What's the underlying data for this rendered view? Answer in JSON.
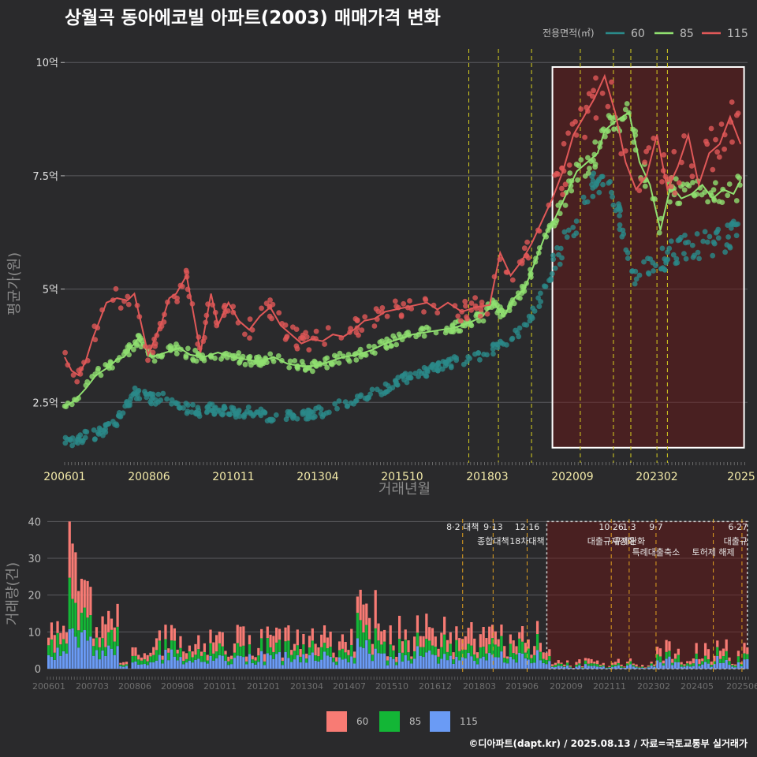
{
  "title": "상월곡 동아에코빌 아파트(2003) 매매가격 변화",
  "legend": {
    "title": "전용면적(㎡)",
    "items": [
      {
        "label": "60",
        "color": "#2a8a8a"
      },
      {
        "label": "85",
        "color": "#90e070"
      },
      {
        "label": "115",
        "color": "#e05858"
      }
    ]
  },
  "chart_data": [
    {
      "type": "line",
      "title": "상월곡 동아에코빌 아파트(2003) 매매가격 변화",
      "xlabel": "거래년월",
      "ylabel": "평균가(원)",
      "x_ticks": [
        "200601",
        "200806",
        "201011",
        "201304",
        "201510",
        "201803",
        "202009",
        "202302",
        "2025"
      ],
      "y_ticks": [
        {
          "value": 2.5,
          "label": "2.5억"
        },
        {
          "value": 5,
          "label": "5억"
        },
        {
          "value": 7.5,
          "label": "7.5억"
        },
        {
          "value": 10,
          "label": "10억"
        }
      ],
      "ylim": [
        1.2,
        10.3
      ],
      "x_unit": "years since 2006-01",
      "policy_lines": [
        11.6,
        12.45,
        13.4,
        14.8,
        15.75,
        16.25,
        17.0,
        17.3
      ],
      "highlight": {
        "x_start": 14.0,
        "x_end": 19.5,
        "y_low": 1.5,
        "y_high": 9.9
      },
      "series": [
        {
          "name": "60",
          "color": "#2a8a8a",
          "values": [
            [
              0.0,
              1.6
            ],
            [
              0.3,
              1.65
            ],
            [
              0.6,
              1.75
            ],
            [
              0.9,
              1.8
            ],
            [
              1.2,
              1.9
            ],
            [
              1.4,
              2.0
            ],
            [
              1.6,
              2.2
            ],
            [
              1.8,
              2.45
            ],
            [
              2.0,
              2.7
            ],
            [
              2.6,
              2.55
            ],
            [
              3.0,
              2.6
            ],
            [
              3.4,
              2.4
            ],
            [
              3.8,
              2.3
            ],
            [
              4.2,
              2.35
            ],
            [
              4.6,
              2.3
            ],
            [
              5.0,
              2.25
            ],
            [
              5.4,
              2.3
            ],
            [
              5.8,
              2.2
            ],
            [
              6.2,
              2.15
            ],
            [
              6.6,
              2.2
            ],
            [
              7.0,
              2.25
            ],
            [
              7.4,
              2.3
            ],
            [
              7.8,
              2.4
            ],
            [
              8.2,
              2.5
            ],
            [
              8.6,
              2.6
            ],
            [
              9.0,
              2.75
            ],
            [
              9.4,
              2.9
            ],
            [
              9.8,
              3.05
            ],
            [
              10.2,
              3.15
            ],
            [
              10.6,
              3.25
            ],
            [
              11.0,
              3.35
            ],
            [
              11.4,
              3.45
            ],
            [
              11.8,
              3.5
            ],
            [
              12.2,
              3.65
            ],
            [
              12.6,
              3.8
            ],
            [
              13.0,
              4.0
            ],
            [
              13.3,
              4.3
            ],
            [
              13.6,
              4.7
            ],
            [
              13.9,
              5.2
            ],
            [
              14.2,
              5.8
            ],
            [
              14.5,
              6.3
            ],
            [
              14.8,
              6.6
            ],
            [
              15.0,
              7.0
            ],
            [
              15.2,
              7.3
            ],
            [
              15.6,
              7.5
            ],
            [
              16.4,
              5.3
            ],
            [
              16.6,
              5.5
            ],
            [
              16.9,
              5.6
            ],
            [
              17.2,
              5.7
            ],
            [
              17.5,
              5.8
            ],
            [
              17.8,
              5.9
            ],
            [
              18.1,
              5.95
            ],
            [
              18.4,
              6.0
            ],
            [
              18.7,
              6.05
            ],
            [
              19.0,
              6.1
            ],
            [
              19.3,
              6.3
            ],
            [
              19.4,
              6.6
            ]
          ]
        },
        {
          "name": "85",
          "color": "#90e070",
          "values": [
            [
              0.0,
              2.4
            ],
            [
              0.3,
              2.55
            ],
            [
              0.6,
              2.8
            ],
            [
              0.9,
              3.1
            ],
            [
              1.1,
              3.2
            ],
            [
              1.3,
              3.3
            ],
            [
              1.5,
              3.45
            ],
            [
              1.7,
              3.5
            ],
            [
              1.9,
              3.7
            ],
            [
              2.1,
              3.9
            ],
            [
              2.5,
              3.5
            ],
            [
              2.9,
              3.6
            ],
            [
              3.3,
              3.7
            ],
            [
              3.6,
              3.55
            ],
            [
              4.0,
              3.5
            ],
            [
              4.4,
              3.6
            ],
            [
              4.8,
              3.5
            ],
            [
              5.2,
              3.45
            ],
            [
              5.6,
              3.4
            ],
            [
              6.0,
              3.5
            ],
            [
              6.4,
              3.35
            ],
            [
              6.8,
              3.3
            ],
            [
              7.2,
              3.3
            ],
            [
              7.6,
              3.4
            ],
            [
              8.0,
              3.5
            ],
            [
              8.4,
              3.55
            ],
            [
              8.8,
              3.65
            ],
            [
              9.2,
              3.8
            ],
            [
              9.6,
              3.9
            ],
            [
              10.0,
              4.0
            ],
            [
              10.4,
              4.05
            ],
            [
              10.8,
              4.1
            ],
            [
              11.2,
              4.15
            ],
            [
              11.6,
              4.25
            ],
            [
              12.0,
              4.4
            ],
            [
              12.3,
              4.7
            ],
            [
              12.6,
              4.4
            ],
            [
              12.9,
              4.8
            ],
            [
              13.2,
              5.0
            ],
            [
              13.5,
              5.6
            ],
            [
              13.8,
              6.2
            ],
            [
              14.1,
              6.6
            ],
            [
              14.4,
              7.1
            ],
            [
              14.7,
              7.6
            ],
            [
              15.0,
              7.8
            ],
            [
              15.3,
              8.0
            ],
            [
              15.5,
              8.5
            ],
            [
              15.8,
              8.7
            ],
            [
              16.2,
              8.9
            ],
            [
              16.5,
              7.8
            ],
            [
              16.8,
              7.3
            ],
            [
              17.1,
              6.3
            ],
            [
              17.4,
              7.3
            ],
            [
              17.7,
              7.0
            ],
            [
              18.0,
              7.1
            ],
            [
              18.3,
              7.3
            ],
            [
              18.6,
              7.0
            ],
            [
              18.9,
              7.2
            ],
            [
              19.2,
              7.1
            ],
            [
              19.4,
              7.4
            ]
          ]
        },
        {
          "name": "115",
          "color": "#e05858",
          "values": [
            [
              0.0,
              3.5
            ],
            [
              0.2,
              3.2
            ],
            [
              0.4,
              3.1
            ],
            [
              0.6,
              3.4
            ],
            [
              0.8,
              3.9
            ],
            [
              1.0,
              4.3
            ],
            [
              1.2,
              4.7
            ],
            [
              1.5,
              4.8
            ],
            [
              1.8,
              4.75
            ],
            [
              2.0,
              4.9
            ],
            [
              2.4,
              3.55
            ],
            [
              2.8,
              4.3
            ],
            [
              3.0,
              4.8
            ],
            [
              3.2,
              4.9
            ],
            [
              3.5,
              5.3
            ],
            [
              3.9,
              3.6
            ],
            [
              4.2,
              4.9
            ],
            [
              4.4,
              4.2
            ],
            [
              4.7,
              4.7
            ],
            [
              5.0,
              4.3
            ],
            [
              5.3,
              4.1
            ],
            [
              5.6,
              4.4
            ],
            [
              5.9,
              4.6
            ],
            [
              6.2,
              4.2
            ],
            [
              6.5,
              4.0
            ],
            [
              6.8,
              3.8
            ],
            [
              7.1,
              3.9
            ],
            [
              7.4,
              3.85
            ],
            [
              7.7,
              4.0
            ],
            [
              8.0,
              3.95
            ],
            [
              8.3,
              4.1
            ],
            [
              8.6,
              4.3
            ],
            [
              8.9,
              4.35
            ],
            [
              9.2,
              4.5
            ],
            [
              9.5,
              4.55
            ],
            [
              9.8,
              4.6
            ],
            [
              10.1,
              4.65
            ],
            [
              10.4,
              4.7
            ],
            [
              10.7,
              4.55
            ],
            [
              11.0,
              4.7
            ],
            [
              11.4,
              4.5
            ],
            [
              11.8,
              4.6
            ],
            [
              12.2,
              4.65
            ],
            [
              12.5,
              5.8
            ],
            [
              12.8,
              5.3
            ],
            [
              13.1,
              5.6
            ],
            [
              13.4,
              6.0
            ],
            [
              13.7,
              6.5
            ],
            [
              14.0,
              7.0
            ],
            [
              14.3,
              7.6
            ],
            [
              14.6,
              8.4
            ],
            [
              14.9,
              8.8
            ],
            [
              15.2,
              9.2
            ],
            [
              15.5,
              9.7
            ],
            [
              15.8,
              8.9
            ],
            [
              16.1,
              7.8
            ],
            [
              16.4,
              7.2
            ],
            [
              16.7,
              7.5
            ],
            [
              17.0,
              8.4
            ],
            [
              17.3,
              7.2
            ],
            [
              17.6,
              7.7
            ],
            [
              17.9,
              8.4
            ],
            [
              18.2,
              7.3
            ],
            [
              18.5,
              8.0
            ],
            [
              18.8,
              8.2
            ],
            [
              19.1,
              8.8
            ],
            [
              19.4,
              8.2
            ]
          ]
        }
      ]
    },
    {
      "type": "bar",
      "stacked": true,
      "ylabel": "거래량(건)",
      "x_ticks": [
        "200601",
        "200703",
        "200806",
        "200908",
        "201011",
        "201201",
        "201304",
        "201407",
        "201510",
        "201612",
        "201803",
        "201906",
        "202009",
        "202111",
        "202302",
        "202405",
        "202506"
      ],
      "y_ticks": [
        0,
        10,
        20,
        30,
        40
      ],
      "ylim": [
        0,
        42
      ],
      "series_order": [
        "115",
        "85",
        "60"
      ],
      "legend": [
        {
          "label": "60",
          "color": "#f87b74"
        },
        {
          "label": "85",
          "color": "#13b636"
        },
        {
          "label": "115",
          "color": "#6a9bf5"
        }
      ],
      "policies": [
        {
          "date": "8·2 대책",
          "label": "",
          "x_year_offset": 11.6
        },
        {
          "date": "9·13",
          "label": "종합대책",
          "x_year_offset": 12.45
        },
        {
          "date": "12·16",
          "label": "18차대책",
          "x_year_offset": 13.4
        },
        {
          "date": "10·26",
          "label": "대출규제강화",
          "x_year_offset": 15.75
        },
        {
          "date": "1·3",
          "label": "규제완화",
          "x_year_offset": 16.25
        },
        {
          "date": "9·7",
          "label": "특례대출축소",
          "x_year_offset": 17.0
        },
        {
          "date": "",
          "label": "토허제 해제",
          "x_year_offset": 18.6
        },
        {
          "date": "6·27",
          "label": "대출규",
          "x_year_offset": 19.4
        }
      ],
      "highlight_x_start": 13.95,
      "highlight_x_end": 19.55,
      "highlight_top": 40
    }
  ],
  "credit": "©디아파트(dapt.kr) / 2025.08.13 / 자료=국토교통부 실거래가"
}
